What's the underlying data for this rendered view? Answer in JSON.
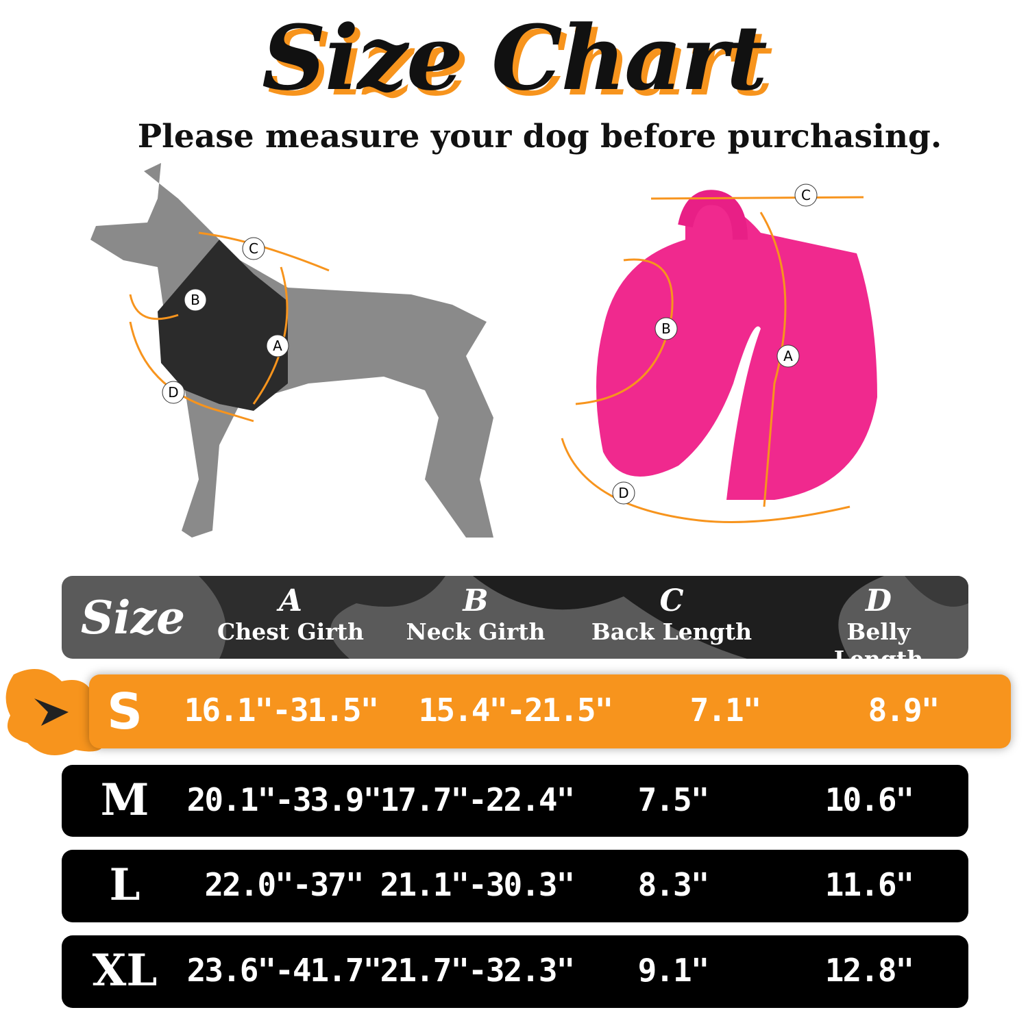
{
  "title": "Size Chart",
  "subtitle": "Please measure your dog before purchasing.",
  "diagram": {
    "markers": [
      "A",
      "B",
      "C",
      "D"
    ],
    "accent": "#F7941D",
    "harness_color": "#F0298E"
  },
  "table": {
    "size_header": "Size",
    "columns": [
      {
        "letter": "A",
        "label": "Chest Girth"
      },
      {
        "letter": "B",
        "label": "Neck Girth"
      },
      {
        "letter": "C",
        "label": "Back Length"
      },
      {
        "letter": "D",
        "label": "Belly Length"
      }
    ],
    "rows": [
      {
        "size": "S",
        "values": [
          "16.1\"-31.5\"",
          "15.4\"-21.5\"",
          "7.1\"",
          "8.9\""
        ],
        "highlighted": true
      },
      {
        "size": "M",
        "values": [
          "20.1\"-33.9\"",
          "17.7\"-22.4\"",
          "7.5\"",
          "10.6\""
        ]
      },
      {
        "size": "L",
        "values": [
          "22.0\"-37\"",
          "21.1\"-30.3\"",
          "8.3\"",
          "11.6\""
        ]
      },
      {
        "size": "XL",
        "values": [
          "23.6\"-41.7\"",
          "21.7\"-32.3\"",
          "9.1\"",
          "12.8\""
        ]
      }
    ],
    "highlight_color": "#F7941D",
    "row_color": "#000000"
  }
}
